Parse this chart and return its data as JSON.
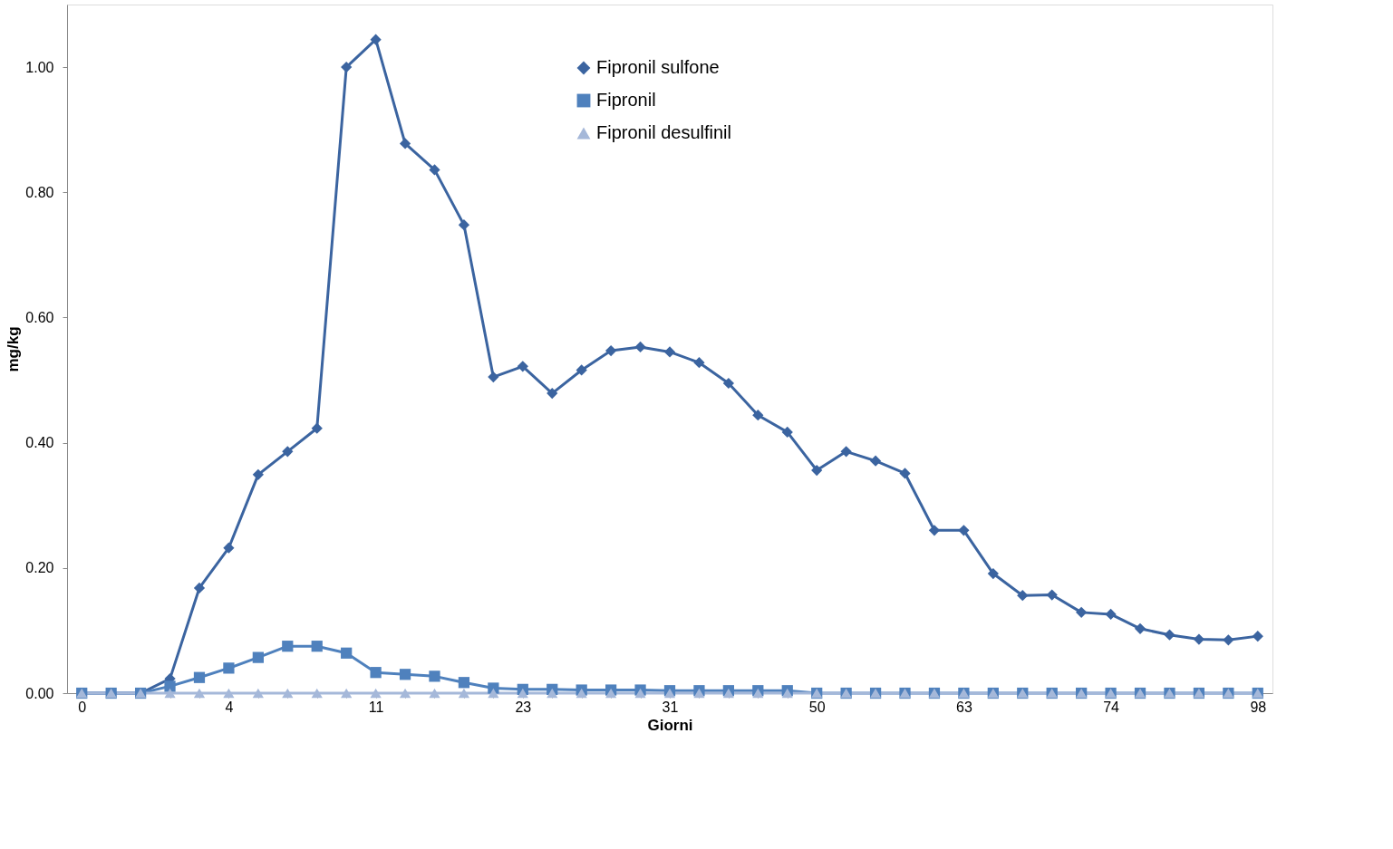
{
  "chart_data": {
    "type": "line",
    "xlabel": "Giorni",
    "ylabel": "mg/kg",
    "categories": [
      "0",
      null,
      null,
      null,
      null,
      "4",
      null,
      null,
      null,
      null,
      "11",
      null,
      null,
      null,
      null,
      "23",
      null,
      null,
      null,
      null,
      "31",
      null,
      null,
      null,
      null,
      "50",
      null,
      null,
      null,
      null,
      "63",
      null,
      null,
      null,
      null,
      "74",
      null,
      null,
      null,
      null,
      "98"
    ],
    "series": [
      {
        "name": "Fipronil sulfone",
        "color": "#3b64a0",
        "marker": "diamond",
        "values": [
          0,
          0,
          0,
          0.023,
          0.168,
          0.232,
          0.349,
          0.386,
          0.423,
          1.0,
          1.044,
          0.878,
          0.836,
          0.748,
          0.505,
          0.522,
          0.479,
          0.516,
          0.547,
          0.553,
          0.545,
          0.528,
          0.495,
          0.444,
          0.417,
          0.356,
          0.386,
          0.371,
          0.351,
          0.26,
          0.26,
          0.191,
          0.156,
          0.157,
          0.129,
          0.126,
          0.103,
          0.093,
          0.086,
          0.085,
          0.091
        ]
      },
      {
        "name": "Fipronil",
        "color": "#4f81bd",
        "marker": "square",
        "values": [
          0,
          0,
          0,
          0.011,
          0.025,
          0.04,
          0.057,
          0.075,
          0.075,
          0.064,
          0.033,
          0.03,
          0.027,
          0.017,
          0.008,
          0.006,
          0.006,
          0.005,
          0.005,
          0.005,
          0.004,
          0.004,
          0.004,
          0.004,
          0.004,
          0,
          0,
          0,
          0,
          0,
          0,
          0,
          0,
          0,
          0,
          0,
          0,
          0,
          0,
          0,
          0
        ]
      },
      {
        "name": "Fipronil desulfinil",
        "color": "#a5b8d9",
        "marker": "triangle",
        "values": [
          0,
          0,
          0,
          0,
          0,
          0,
          0,
          0,
          0,
          0,
          0,
          0,
          0,
          0,
          0,
          0,
          0,
          0,
          0,
          0,
          0,
          0,
          0,
          0,
          0,
          0,
          0,
          0,
          0,
          0,
          0,
          0,
          0,
          0,
          0,
          0,
          0,
          0,
          0,
          0,
          0
        ]
      }
    ],
    "ylim": [
      0,
      1.1
    ],
    "yticks": [
      {
        "value": 0,
        "label": "0.00"
      },
      {
        "value": 0.2,
        "label": "0.20"
      },
      {
        "value": 0.4,
        "label": "0.40"
      },
      {
        "value": 0.6,
        "label": "0.60"
      },
      {
        "value": 0.8,
        "label": "0.80"
      },
      {
        "value": 1.0,
        "label": "1.00"
      }
    ],
    "legend": "top right",
    "grid": false,
    "line_style": "solid"
  }
}
